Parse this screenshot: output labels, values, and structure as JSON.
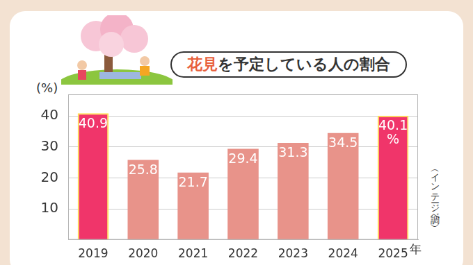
{
  "chart_data": {
    "type": "bar",
    "title": "花見を予定している人の割合",
    "y_label": "(%)",
    "x_label": "年",
    "note": "（インテージ調べ）",
    "categories": [
      "2019",
      "2020",
      "2021",
      "2022",
      "2023",
      "2024",
      "2025"
    ],
    "values": [
      40.9,
      25.8,
      21.7,
      29.4,
      31.3,
      34.5,
      40.1
    ],
    "value_labels": [
      "40.9",
      "25.8",
      "21.7",
      "29.4",
      "31.3",
      "34.5",
      "40.1%"
    ],
    "colors": [
      "#f0356a",
      "#e8938a",
      "#e8938a",
      "#e8938a",
      "#e8938a",
      "#e8938a",
      "#f0356a"
    ],
    "ylim": [
      0,
      47
    ],
    "yticks": [
      10,
      20,
      30,
      40
    ],
    "grid": true,
    "data_labels": true
  }
}
